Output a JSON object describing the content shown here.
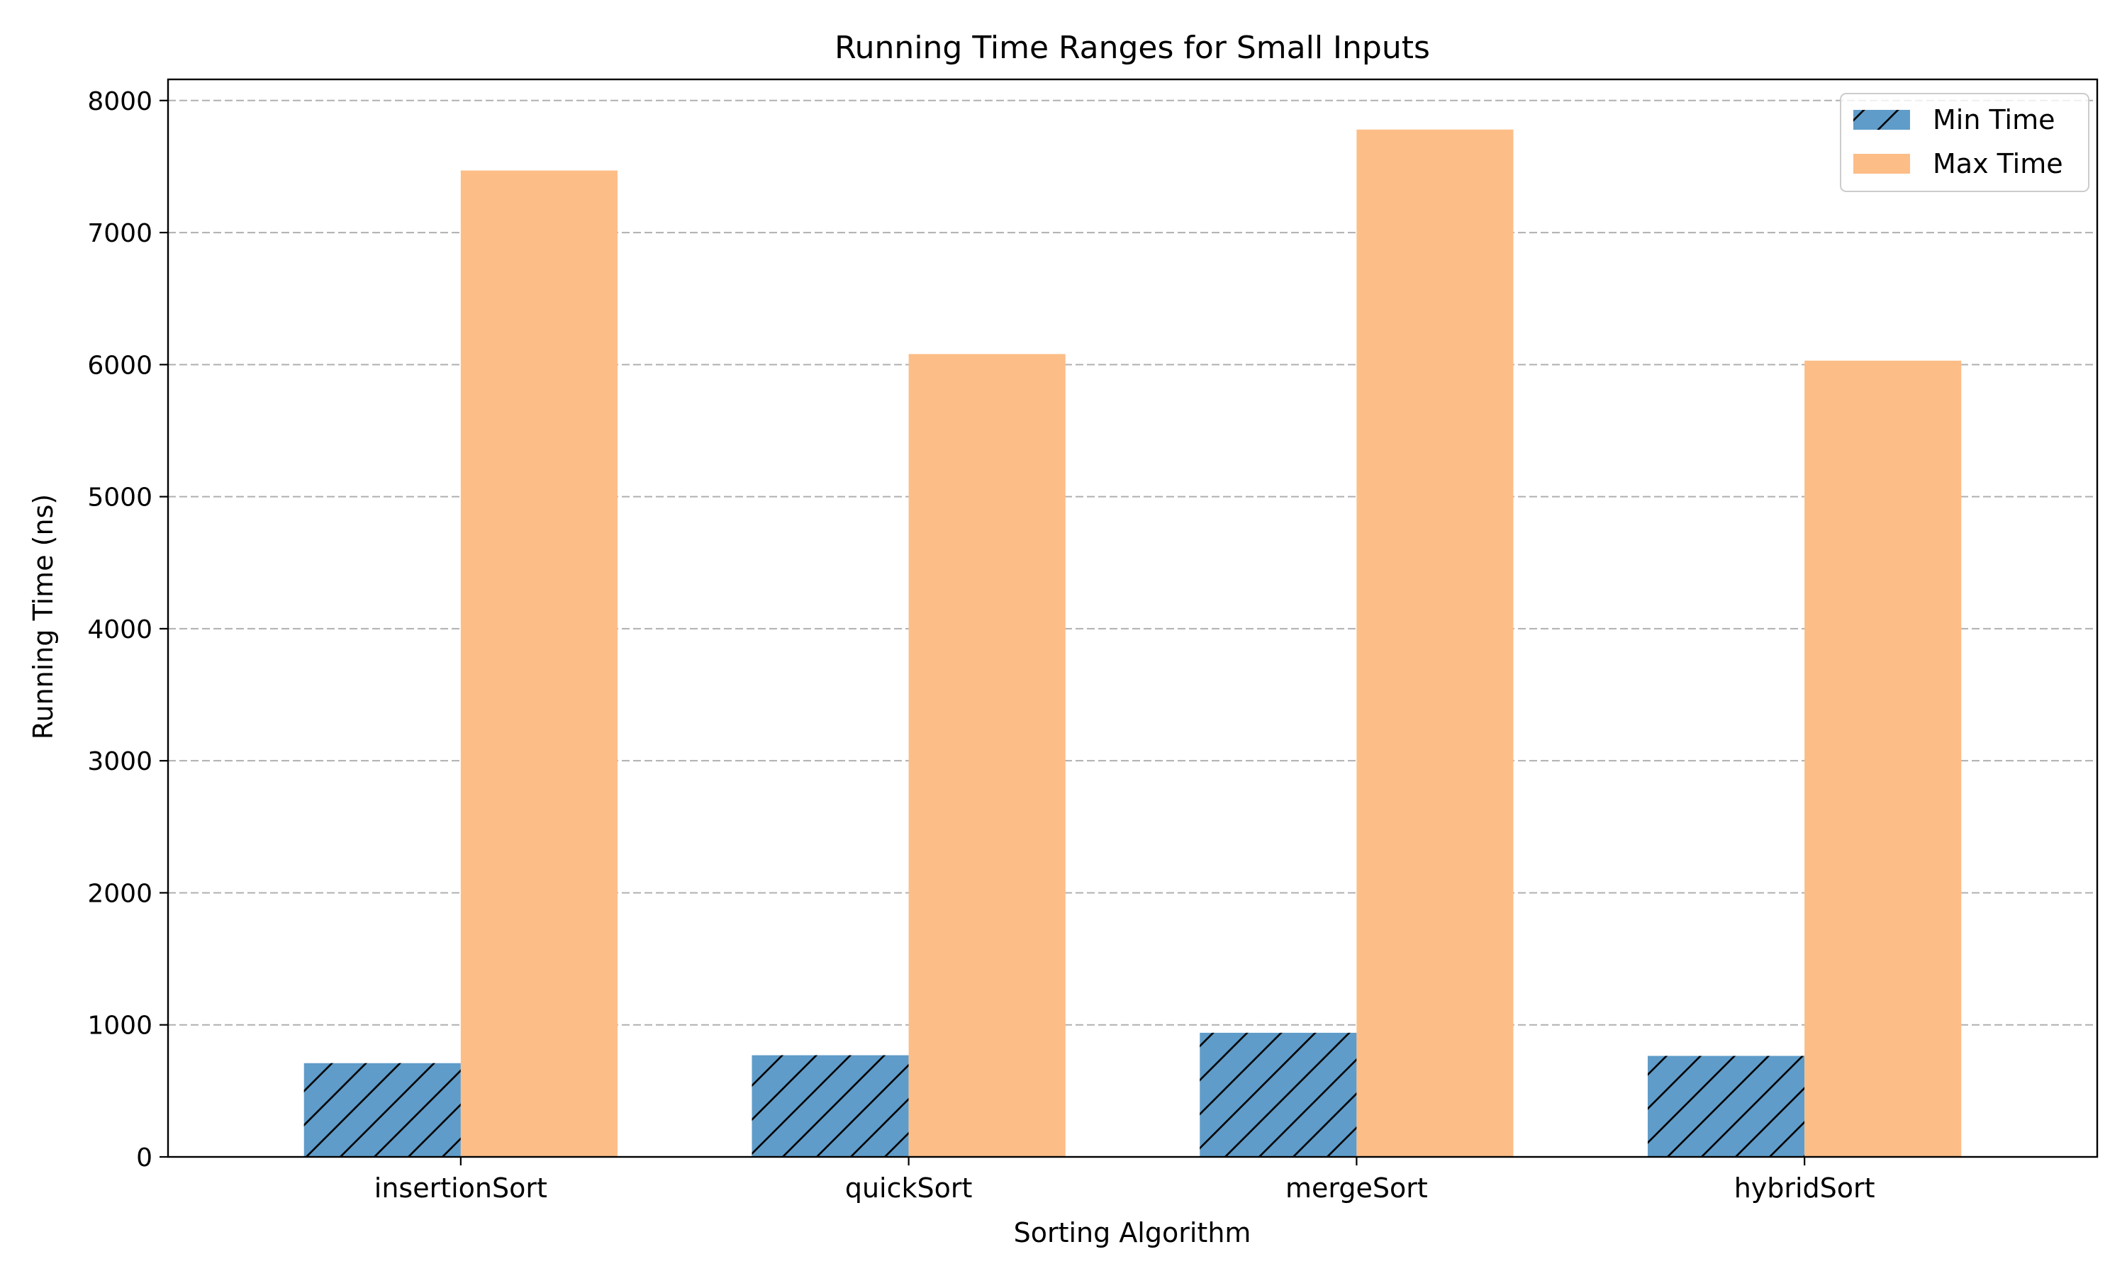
{
  "chart_data": {
    "type": "bar",
    "title": "Running Time Ranges for Small Inputs",
    "xlabel": "Sorting Algorithm",
    "ylabel": "Running Time (ns)",
    "categories": [
      "insertionSort",
      "quickSort",
      "mergeSort",
      "hybridSort"
    ],
    "series": [
      {
        "name": "Min Time",
        "values": [
          710,
          770,
          940,
          765
        ],
        "color": "#5f9cc9",
        "hatch": "diagonal"
      },
      {
        "name": "Max Time",
        "values": [
          7470,
          6080,
          7780,
          6030
        ],
        "color": "#fdbd87"
      }
    ],
    "ylim": [
      0,
      8160
    ],
    "yticks": [
      0,
      1000,
      2000,
      3000,
      4000,
      5000,
      6000,
      7000,
      8000
    ],
    "grid": "y-dashed",
    "legend": "top-right"
  }
}
